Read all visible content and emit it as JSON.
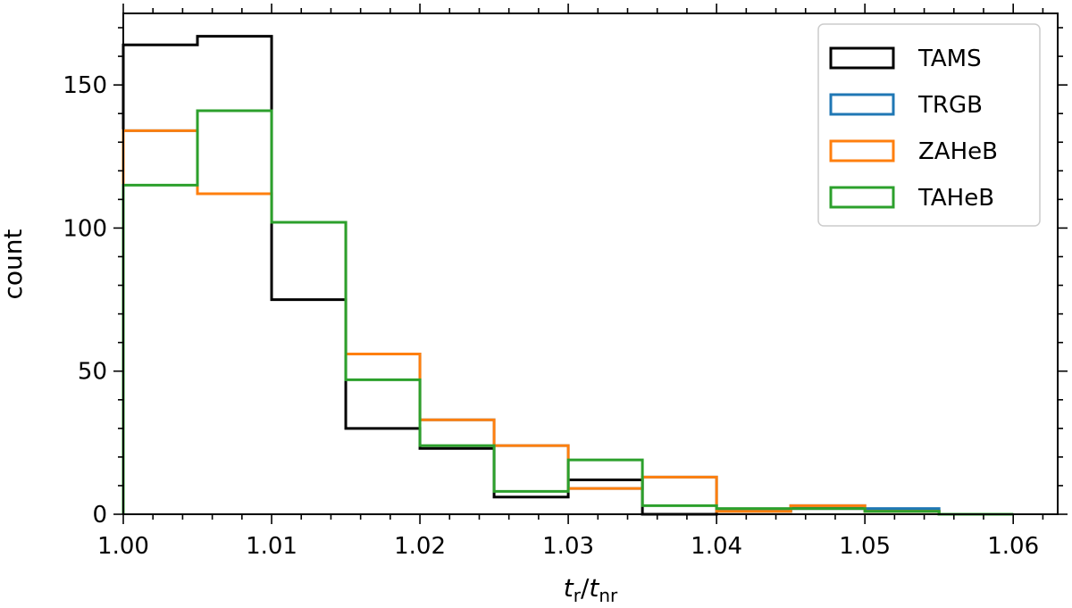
{
  "chart_data": {
    "type": "histogram-step",
    "xlabel_main": "t",
    "xlabel_sub1": "r",
    "xlabel_sep": "/",
    "xlabel_sub2": "nr",
    "ylabel": "count",
    "xlim": [
      1.0,
      1.063
    ],
    "ylim": [
      0,
      175
    ],
    "x_ticks": [
      1.0,
      1.01,
      1.02,
      1.03,
      1.04,
      1.05,
      1.06
    ],
    "x_tick_labels": [
      "1.00",
      "1.01",
      "1.02",
      "1.03",
      "1.04",
      "1.05",
      "1.06"
    ],
    "y_ticks": [
      0,
      50,
      100,
      150
    ],
    "y_tick_labels": [
      "0",
      "50",
      "100",
      "150"
    ],
    "bin_edges": [
      1.0,
      1.005,
      1.01,
      1.015,
      1.02,
      1.025,
      1.03,
      1.035,
      1.04,
      1.045,
      1.05,
      1.055,
      1.06
    ],
    "legend_position": "top-right",
    "series": [
      {
        "name": "TAMS",
        "color": "#000000",
        "counts": [
          164,
          167,
          75,
          30,
          23,
          6,
          12,
          0,
          1,
          2,
          1,
          0
        ]
      },
      {
        "name": "TRGB",
        "color": "#1f77b4",
        "counts": [
          134,
          112,
          102,
          56,
          33,
          24,
          9,
          13,
          1,
          3,
          2,
          0
        ]
      },
      {
        "name": "ZAHeB",
        "color": "#ff7f0e",
        "counts": [
          134,
          112,
          102,
          56,
          33,
          24,
          9,
          13,
          1,
          3,
          1,
          0
        ]
      },
      {
        "name": "TAHeB",
        "color": "#2ca02c",
        "counts": [
          115,
          141,
          102,
          47,
          24,
          8,
          19,
          3,
          2,
          2,
          1,
          0
        ]
      }
    ]
  }
}
